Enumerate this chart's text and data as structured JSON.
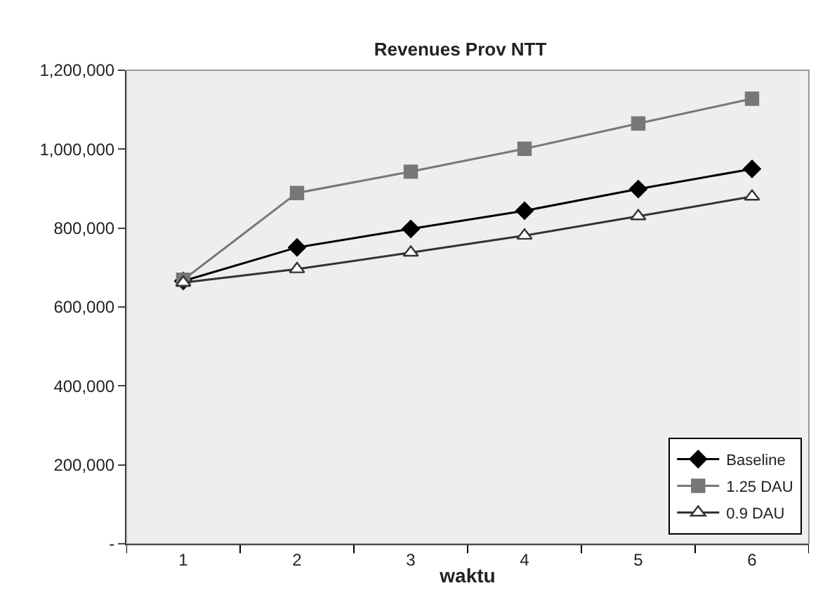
{
  "chart_data": {
    "type": "line",
    "title": "Revenues Prov NTT",
    "xlabel": "waktu",
    "categories": [
      "1",
      "2",
      "3",
      "4",
      "5",
      "6"
    ],
    "series": [
      {
        "name": "Baseline",
        "color": "#000000",
        "marker": "diamond",
        "values": [
          666000,
          751000,
          798000,
          844000,
          899000,
          950000
        ]
      },
      {
        "name": "1.25 DAU",
        "color": "#777777",
        "marker": "square",
        "values": [
          669000,
          889000,
          943000,
          1001000,
          1065000,
          1128000
        ]
      },
      {
        "name": "0.9 DAU",
        "color": "#333333",
        "marker": "triangle",
        "values": [
          662000,
          696000,
          738000,
          781000,
          830000,
          880000
        ]
      }
    ],
    "ylim": [
      0,
      1200000
    ],
    "yticks": [
      {
        "value": 0,
        "label": "-"
      },
      {
        "value": 200000,
        "label": "200,000"
      },
      {
        "value": 400000,
        "label": "400,000"
      },
      {
        "value": 600000,
        "label": "600,000"
      },
      {
        "value": 800000,
        "label": "800,000"
      },
      {
        "value": 1000000,
        "label": "1,000,000"
      },
      {
        "value": 1200000,
        "label": "1,200,000"
      }
    ],
    "grid": false,
    "legend": "bottom right",
    "line_style": "solid"
  }
}
